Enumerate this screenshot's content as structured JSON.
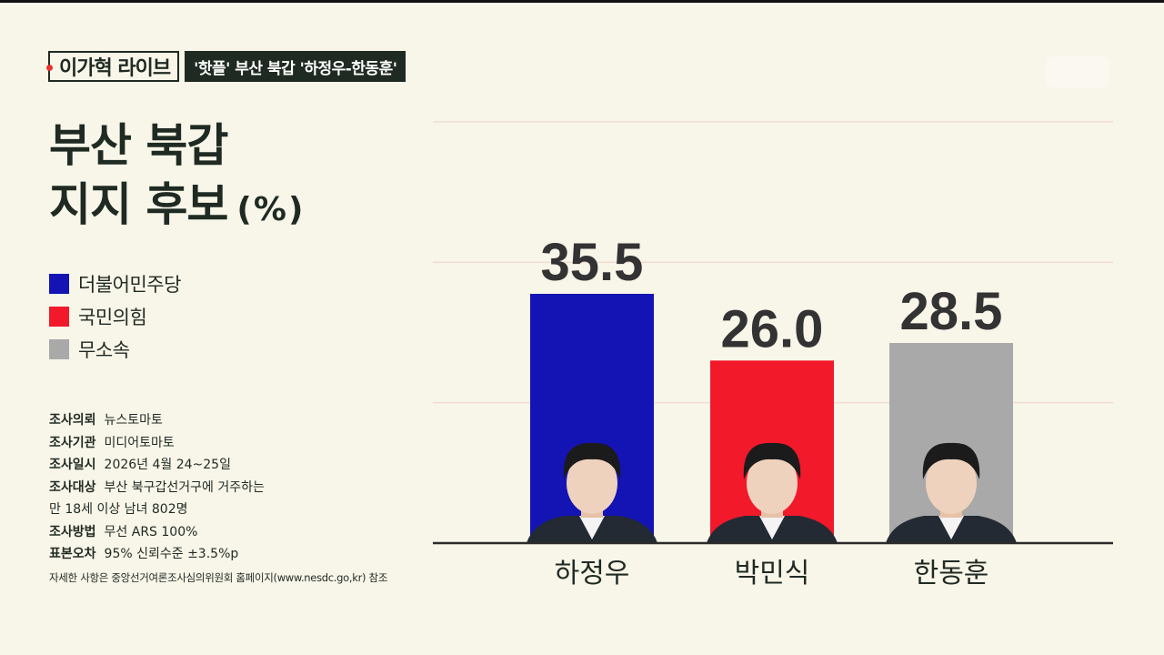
{
  "brand": {
    "show_name": "이가혁 라이브",
    "topic": "'핫플' 부산 북갑 '하정우-한동훈'"
  },
  "title": {
    "line1": "부산 북갑",
    "line2": "지지 후보",
    "unit": "(%)"
  },
  "legend": [
    {
      "label": "더불어민주당",
      "color": "#1414b4"
    },
    {
      "label": "국민의힘",
      "color": "#f2192b"
    },
    {
      "label": "무소속",
      "color": "#a9a9a9"
    }
  ],
  "survey": {
    "rows": [
      {
        "key": "조사의뢰",
        "value": "뉴스토마토"
      },
      {
        "key": "조사기관",
        "value": "미디어토마토"
      },
      {
        "key": "조사일시",
        "value": "2026년 4월 24~25일"
      },
      {
        "key": "조사대상",
        "value": "부산 북구갑선거구에 거주하는"
      },
      {
        "key": "",
        "value": "만 18세 이상 남녀 802명"
      },
      {
        "key": "조사방법",
        "value": "무선 ARS 100%"
      },
      {
        "key": "표본오차",
        "value": "95% 신뢰수준 ±3.5%p"
      }
    ],
    "footnote": "자세한 사항은 중앙선거여론조사심의위원회 홈페이지(www.nesdc.go,kr) 참조"
  },
  "chart_data": {
    "type": "bar",
    "title": "부산 북갑 지지 후보",
    "unit": "%",
    "categories": [
      "하정우",
      "박민식",
      "한동훈"
    ],
    "values": [
      35.5,
      26.0,
      28.5
    ],
    "value_labels": [
      "35.5",
      "26.0",
      "28.5"
    ],
    "colors": [
      "#1414b4",
      "#f2192b",
      "#a9a9a9"
    ],
    "parties": [
      "더불어민주당",
      "국민의힘",
      "무소속"
    ],
    "ylim": [
      0,
      60
    ],
    "grid": true
  }
}
